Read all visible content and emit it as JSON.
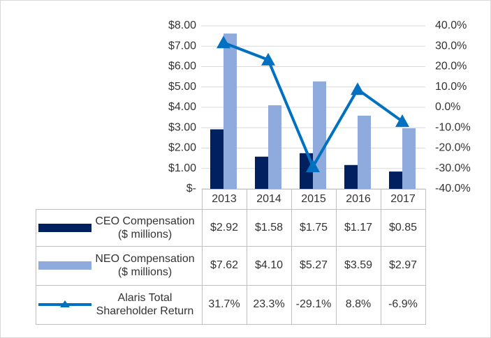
{
  "chart_data": {
    "type": "bar",
    "categories": [
      "2013",
      "2014",
      "2015",
      "2016",
      "2017"
    ],
    "series": [
      {
        "name": "CEO Compensation ($ millions)",
        "color": "#002060",
        "values": [
          2.92,
          1.58,
          1.75,
          1.17,
          0.85
        ],
        "value_labels": [
          "$2.92",
          "$1.58",
          "$1.75",
          "$1.17",
          "$0.85"
        ]
      },
      {
        "name": "NEO Compensation ($ millions)",
        "color": "#8faadc",
        "values": [
          7.62,
          4.1,
          5.27,
          3.59,
          2.97
        ],
        "value_labels": [
          "$7.62",
          "$4.10",
          "$5.27",
          "$3.59",
          "$2.97"
        ]
      },
      {
        "name": "Alaris Total Shareholder Return",
        "type": "line",
        "axis": "y2",
        "color": "#0070c0",
        "values": [
          31.7,
          23.3,
          -29.1,
          8.8,
          -6.9
        ],
        "value_labels": [
          "31.7%",
          "23.3%",
          "-29.1%",
          "8.8%",
          "-6.9%"
        ]
      }
    ],
    "ylim": [
      0,
      8
    ],
    "yticks": [
      {
        "value": 0,
        "label": "$-"
      },
      {
        "value": 1,
        "label": "$1.00"
      },
      {
        "value": 2,
        "label": "$2.00"
      },
      {
        "value": 3,
        "label": "$3.00"
      },
      {
        "value": 4,
        "label": "$4.00"
      },
      {
        "value": 5,
        "label": "$5.00"
      },
      {
        "value": 6,
        "label": "$6.00"
      },
      {
        "value": 7,
        "label": "$7.00"
      },
      {
        "value": 8,
        "label": "$8.00"
      }
    ],
    "y2lim": [
      -40,
      40
    ],
    "y2ticks": [
      {
        "value": -40,
        "label": "-40.0%"
      },
      {
        "value": -30,
        "label": "-30.0%"
      },
      {
        "value": -20,
        "label": "-20.0%"
      },
      {
        "value": -10,
        "label": "-10.0%"
      },
      {
        "value": 0,
        "label": "0.0%"
      },
      {
        "value": 10,
        "label": "10.0%"
      },
      {
        "value": 20,
        "label": "20.0%"
      },
      {
        "value": 30,
        "label": "30.0%"
      },
      {
        "value": 40,
        "label": "40.0%"
      }
    ],
    "grid": true,
    "data_table": true
  }
}
